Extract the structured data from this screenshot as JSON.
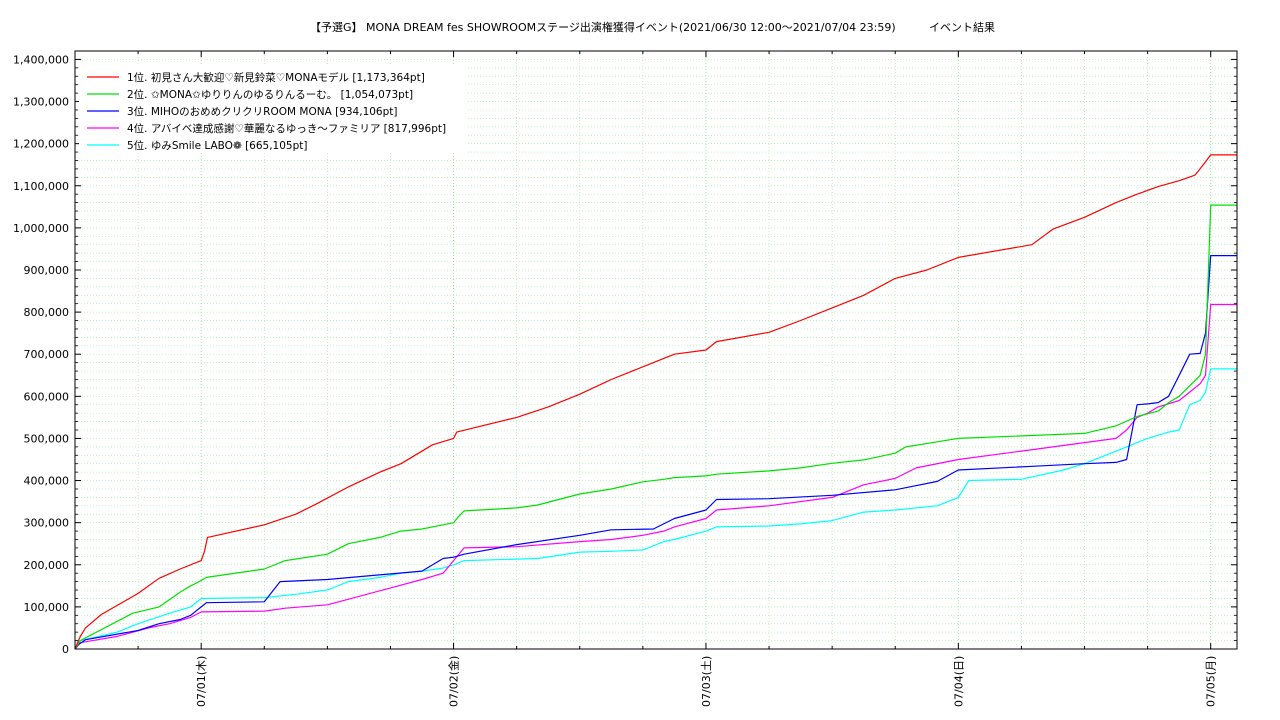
{
  "chart_data": {
    "type": "line",
    "title": "【予選G】 MONA DREAM fes SHOWROOMステージ出演権獲得イベント(2021/06/30 12:00～2021/07/04 23:59)",
    "subtitle": "イベント結果",
    "xlabel": "",
    "ylabel": "",
    "x_unit": "hours since 2021/06/30 12:00",
    "xlim": [
      0,
      110.5
    ],
    "ylim": [
      0,
      1420000
    ],
    "yticks": [
      0,
      100000,
      200000,
      300000,
      400000,
      500000,
      600000,
      700000,
      800000,
      900000,
      1000000,
      1100000,
      1200000,
      1300000,
      1400000
    ],
    "ytick_labels": [
      "0",
      "100,000",
      "200,000",
      "300,000",
      "400,000",
      "500,000",
      "600,000",
      "700,000",
      "800,000",
      "900,000",
      "1,000,000",
      "1,100,000",
      "1,200,000",
      "1,300,000",
      "1,400,000"
    ],
    "xticks": [
      12,
      36,
      60,
      84,
      108
    ],
    "xtick_labels": [
      "07/01(木)",
      "07/02(金)",
      "07/03(土)",
      "07/04(日)",
      "07/05(月)"
    ],
    "grid": true,
    "legend_position": "top-left",
    "series": [
      {
        "name": "1位. 初見さん大歓迎♡新見鈴菜♡MONAモデル [1,173,364pt]",
        "color": "#ff0000",
        "x": [
          0,
          0.5,
          1,
          2.5,
          6,
          8,
          10,
          12,
          12.3,
          12.6,
          18,
          21,
          23,
          26,
          29,
          31,
          34,
          36,
          36.3,
          42,
          45,
          48,
          51,
          54,
          57,
          60,
          61,
          66,
          69,
          72,
          75,
          78,
          81,
          84,
          91,
          93,
          96,
          99,
          101,
          103,
          105,
          106.5,
          107.3,
          107.6,
          108,
          110.5
        ],
        "values": [
          0,
          30000,
          50000,
          82000,
          132000,
          168000,
          190000,
          210000,
          230000,
          265000,
          295000,
          320000,
          345000,
          385000,
          420000,
          440000,
          485000,
          500000,
          515000,
          550000,
          575000,
          605000,
          640000,
          670000,
          700000,
          710000,
          730000,
          752000,
          780000,
          810000,
          840000,
          880000,
          900000,
          930000,
          960000,
          997000,
          1025000,
          1060000,
          1080000,
          1098000,
          1112000,
          1125000,
          1150000,
          1160000,
          1173364,
          1173364
        ]
      },
      {
        "name": "2位. ✩MONA✩ゆりりんのゆるりんるーむ。 [1,054,073pt]",
        "color": "#00e000",
        "x": [
          0,
          0.5,
          5.5,
          8,
          10,
          11,
          11.8,
          12.5,
          18,
          20,
          24,
          26,
          29,
          31,
          33,
          35,
          36,
          36.5,
          37,
          42,
          44,
          48,
          51,
          54,
          56,
          57,
          60,
          61,
          66,
          69,
          72,
          75,
          78,
          79,
          82,
          84,
          96,
          99,
          101,
          103,
          104,
          105,
          106,
          107,
          107.5,
          108,
          110.5
        ],
        "values": [
          0,
          20000,
          85000,
          100000,
          135000,
          150000,
          160000,
          170000,
          190000,
          210000,
          225000,
          250000,
          265000,
          280000,
          285000,
          295000,
          300000,
          315000,
          328000,
          335000,
          342000,
          368000,
          380000,
          397000,
          403000,
          407000,
          411000,
          415000,
          423000,
          430000,
          441000,
          449000,
          465000,
          480000,
          492000,
          500000,
          512000,
          530000,
          552000,
          565000,
          585000,
          600000,
          625000,
          650000,
          700000,
          1054073,
          1054073
        ]
      },
      {
        "name": "3位. MIHOのおめめクリクリROOM MONA [934,106pt]",
        "color": "#0000ff",
        "x": [
          0,
          0.3,
          1,
          6,
          8,
          10,
          11,
          12,
          12.5,
          18,
          19.5,
          24,
          33,
          35,
          36,
          37,
          42,
          48,
          51,
          55,
          57,
          60,
          61,
          66,
          72,
          78,
          79,
          82,
          84,
          92,
          96,
          99,
          100,
          101,
          102,
          103,
          104,
          105,
          106,
          107,
          107.5,
          108,
          110.5
        ],
        "values": [
          0,
          10000,
          22000,
          44000,
          60000,
          70000,
          80000,
          100000,
          110000,
          112000,
          160000,
          165000,
          185000,
          215000,
          218000,
          225000,
          248000,
          270000,
          283000,
          285000,
          310000,
          330000,
          355000,
          357000,
          365000,
          378000,
          383000,
          398000,
          425000,
          435000,
          440000,
          443000,
          450000,
          580000,
          582000,
          585000,
          600000,
          650000,
          700000,
          702000,
          750000,
          934106,
          934106
        ]
      },
      {
        "name": "4位. アバイベ達成感謝♡華麗なるゆっき〜ファミリア [817,996pt]",
        "color": "#ff00ff",
        "x": [
          0,
          0.5,
          4,
          7,
          9,
          11,
          12,
          18,
          20,
          24,
          27,
          30,
          33,
          35,
          36,
          37,
          42,
          48,
          51,
          54,
          56,
          57,
          60,
          61,
          66,
          72,
          75,
          78,
          80,
          84,
          90,
          96,
          99,
          100,
          101,
          102,
          103,
          105,
          106,
          107,
          107.5,
          108,
          110.5
        ],
        "values": [
          0,
          15000,
          30000,
          50000,
          60000,
          75000,
          88000,
          90000,
          97000,
          105000,
          125000,
          145000,
          165000,
          180000,
          210000,
          240000,
          243000,
          255000,
          260000,
          270000,
          280000,
          290000,
          310000,
          330000,
          340000,
          360000,
          390000,
          405000,
          430000,
          450000,
          470000,
          490000,
          500000,
          520000,
          550000,
          560000,
          575000,
          590000,
          610000,
          630000,
          650000,
          817996,
          817996
        ]
      },
      {
        "name": "5位. ゆみSmile LABO❁ [665,105pt]",
        "color": "#00ffff",
        "x": [
          0,
          0.5,
          4,
          6,
          9,
          11,
          12,
          18,
          21,
          24,
          26,
          29,
          31,
          33,
          35,
          36,
          37,
          44,
          48,
          51,
          54,
          56,
          57,
          60,
          61,
          66,
          69,
          72,
          75,
          78,
          82,
          84,
          85,
          90,
          94,
          96,
          98,
          100,
          101,
          102,
          104,
          105,
          106,
          107,
          107.5,
          108,
          110.5
        ],
        "values": [
          0,
          20000,
          40000,
          60000,
          85000,
          100000,
          120000,
          122000,
          130000,
          140000,
          160000,
          170000,
          180000,
          185000,
          192000,
          200000,
          210000,
          215000,
          230000,
          232000,
          235000,
          255000,
          260000,
          280000,
          290000,
          292000,
          297000,
          305000,
          325000,
          330000,
          340000,
          360000,
          400000,
          403000,
          425000,
          440000,
          460000,
          480000,
          490000,
          500000,
          515000,
          520000,
          580000,
          590000,
          610000,
          665105,
          665105
        ]
      }
    ]
  }
}
